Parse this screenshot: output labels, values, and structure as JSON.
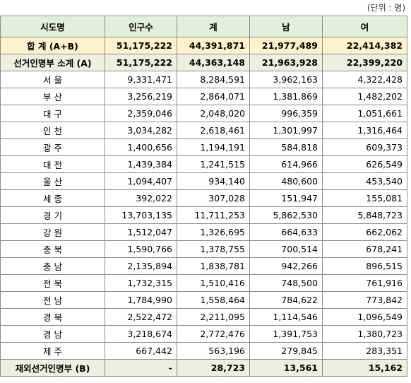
{
  "unit": "(단위 : 명)",
  "table": {
    "header": [
      "시도명",
      "인구수",
      "계",
      "남",
      "여"
    ],
    "rows": [
      [
        "합 계 (A+B)",
        "51,175,222",
        "44,391,871",
        "21,977,489",
        "22,414,382"
      ],
      [
        "선거인명부 소계 (A)",
        "51,175,222",
        "44,363,148",
        "21,963,928",
        "22,399,220"
      ],
      [
        "서 울",
        "9,331,471",
        "8,284,591",
        "3,962,163",
        "4,322,428"
      ],
      [
        "부 산",
        "3,256,219",
        "2,864,071",
        "1,381,869",
        "1,482,202"
      ],
      [
        "대 구",
        "2,359,046",
        "2,048,020",
        "996,359",
        "1,051,661"
      ],
      [
        "인 천",
        "3,034,282",
        "2,618,461",
        "1,301,997",
        "1,316,464"
      ],
      [
        "광 주",
        "1,400,656",
        "1,194,191",
        "584,818",
        "609,373"
      ],
      [
        "대 전",
        "1,439,384",
        "1,241,515",
        "614,966",
        "626,549"
      ],
      [
        "울 산",
        "1,094,407",
        "934,140",
        "480,600",
        "453,540"
      ],
      [
        "세 종",
        "392,022",
        "307,028",
        "151,947",
        "155,081"
      ],
      [
        "경 기",
        "13,703,135",
        "11,711,253",
        "5,862,530",
        "5,848,723"
      ],
      [
        "강 원",
        "1,512,047",
        "1,326,695",
        "664,633",
        "662,062"
      ],
      [
        "충 북",
        "1,590,766",
        "1,378,755",
        "700,514",
        "678,241"
      ],
      [
        "충 남",
        "2,135,894",
        "1,838,781",
        "942,266",
        "896,515"
      ],
      [
        "전 북",
        "1,732,315",
        "1,510,416",
        "748,500",
        "761,916"
      ],
      [
        "전 남",
        "1,784,990",
        "1,558,464",
        "784,622",
        "773,842"
      ],
      [
        "경 북",
        "2,522,472",
        "2,211,095",
        "1,114,546",
        "1,096,549"
      ],
      [
        "경 남",
        "3,218,674",
        "2,772,476",
        "1,391,753",
        "1,380,723"
      ],
      [
        "제 주",
        "667,442",
        "563,196",
        "279,845",
        "283,351"
      ],
      [
        "재외선거인명부 (B)",
        "-",
        "28,723",
        "13,561",
        "15,162"
      ]
    ]
  }
}
